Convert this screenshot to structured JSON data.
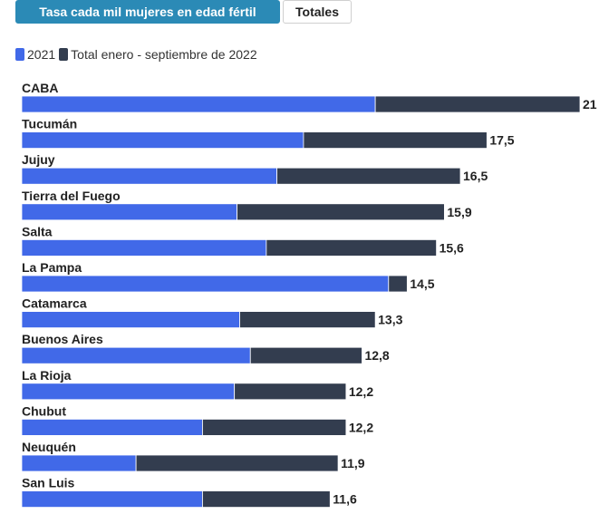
{
  "tabs": [
    {
      "label": "Tasa cada mil mujeres en edad fértil",
      "active": true
    },
    {
      "label": "Totales",
      "active": false
    }
  ],
  "colors": {
    "series_2021": "#4169e8",
    "series_2022": "#333d4f",
    "tab_active": "#2b8ab6"
  },
  "chart_data": {
    "type": "bar",
    "orientation": "horizontal",
    "stacked": true,
    "legend_position": "top-left",
    "categories": [
      "CABA",
      "Tucumán",
      "Jujuy",
      "Tierra del Fuego",
      "Salta",
      "La Pampa",
      "Catamarca",
      "Buenos Aires",
      "La Rioja",
      "Chubut",
      "Neuquén",
      "San Luis"
    ],
    "series": [
      {
        "name": "2021",
        "values": [
          13.3,
          10.6,
          9.6,
          8.1,
          9.2,
          13.8,
          8.2,
          8.6,
          8.0,
          6.8,
          4.3,
          6.8
        ]
      },
      {
        "name": "Total enero - septiembre de 2022",
        "values": [
          7.7,
          6.9,
          6.9,
          7.8,
          6.4,
          0.7,
          5.1,
          4.2,
          4.2,
          5.4,
          7.6,
          4.8
        ]
      }
    ],
    "totals": [
      21,
      17.5,
      16.5,
      15.9,
      15.6,
      14.5,
      13.3,
      12.8,
      12.2,
      12.2,
      11.9,
      11.6
    ],
    "total_labels": [
      "21",
      "17,5",
      "16,5",
      "15,9",
      "15,6",
      "14,5",
      "13,3",
      "12,8",
      "12,2",
      "12,2",
      "11,9",
      "11,6"
    ],
    "xlim": [
      0,
      21
    ]
  }
}
